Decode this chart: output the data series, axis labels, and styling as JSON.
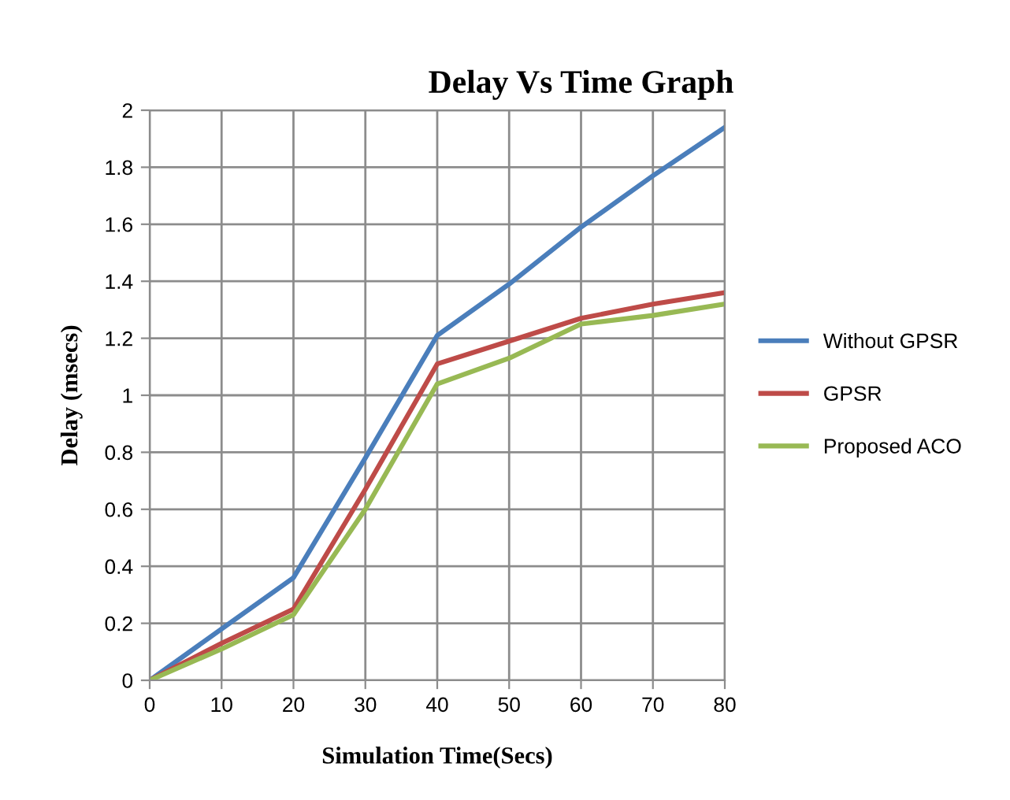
{
  "chart_data": {
    "type": "line",
    "title": "Delay Vs Time Graph",
    "xlabel": "Simulation Time(Secs)",
    "ylabel": "Delay (msecs)",
    "x": [
      0,
      10,
      20,
      30,
      40,
      50,
      60,
      70,
      80
    ],
    "series": [
      {
        "name": "Without GPSR",
        "color": "#4a7ebb",
        "values": [
          0,
          0.18,
          0.36,
          0.78,
          1.21,
          1.39,
          1.59,
          1.77,
          1.94
        ]
      },
      {
        "name": "GPSR",
        "color": "#be4b48",
        "values": [
          0,
          0.13,
          0.25,
          0.67,
          1.11,
          1.19,
          1.27,
          1.32,
          1.36
        ]
      },
      {
        "name": "Proposed ACO",
        "color": "#98b954",
        "values": [
          0,
          0.11,
          0.23,
          0.6,
          1.04,
          1.13,
          1.25,
          1.28,
          1.32
        ]
      }
    ],
    "xlim": [
      0,
      80
    ],
    "xticks": [
      0,
      10,
      20,
      30,
      40,
      50,
      60,
      70,
      80
    ],
    "ylim": [
      0,
      2
    ],
    "yticks": [
      0,
      0.2,
      0.4,
      0.6,
      0.8,
      1,
      1.2,
      1.4,
      1.6,
      1.8,
      2
    ],
    "grid": true,
    "legend": "right",
    "marker": "none",
    "line_style": "solid"
  }
}
